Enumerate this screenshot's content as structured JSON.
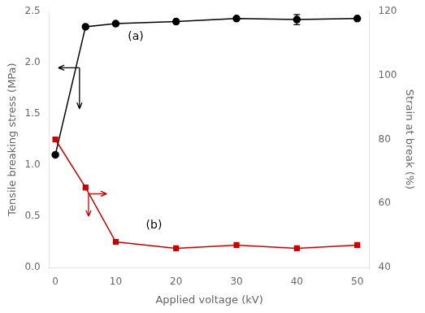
{
  "chart_data": {
    "type": "line",
    "xlabel": "Applied voltage (kV)",
    "ylabel": "Tensile breaking stress (MPa)",
    "y2label": "Strain at break (%)",
    "x": [
      0,
      5,
      10,
      20,
      30,
      40,
      50
    ],
    "series": [
      {
        "color": "#000000",
        "marker": "circle",
        "values": [
          1.1,
          2.35,
          2.38,
          2.4,
          2.43,
          2.42,
          2.43
        ],
        "errors": [
          0.0,
          0.0,
          0.0,
          0.0,
          0.0,
          0.05,
          0.0
        ]
      },
      {
        "color": "#cc0000",
        "marker": "square",
        "axis": "y2",
        "values": [
          80,
          65,
          48,
          46,
          47,
          46,
          47
        ]
      }
    ],
    "xlim": [
      -1,
      52
    ],
    "xticks": [
      0,
      10,
      20,
      30,
      40,
      50
    ],
    "ylim": [
      0.0,
      2.5
    ],
    "yticks": [
      {
        "value": 0.0,
        "label": "0.0"
      },
      0.5,
      {
        "value": 1.0,
        "label": "1.0"
      },
      1.5,
      {
        "value": 2.0,
        "label": "2.0"
      },
      2.5
    ],
    "y2lim": [
      40,
      120
    ],
    "y2ticks": [
      40,
      60,
      80,
      100,
      120
    ],
    "grid": false,
    "annotations": [
      {
        "text": "(a)",
        "x": 12,
        "y": 2.22
      },
      {
        "text": "(b)",
        "x": 15,
        "y": 0.38
      },
      {
        "from": [
          4.0,
          1.95
        ],
        "to": [
          0.5,
          1.95
        ],
        "color": "#000000"
      },
      {
        "from": [
          4.0,
          1.95
        ],
        "to": [
          4.0,
          1.55
        ],
        "color": "#000000"
      },
      {
        "from": [
          5.5,
          0.72
        ],
        "to": [
          8.5,
          0.72
        ],
        "color": "#cc0000"
      },
      {
        "from": [
          5.5,
          0.72
        ],
        "to": [
          5.5,
          0.5
        ],
        "color": "#cc0000"
      }
    ]
  }
}
